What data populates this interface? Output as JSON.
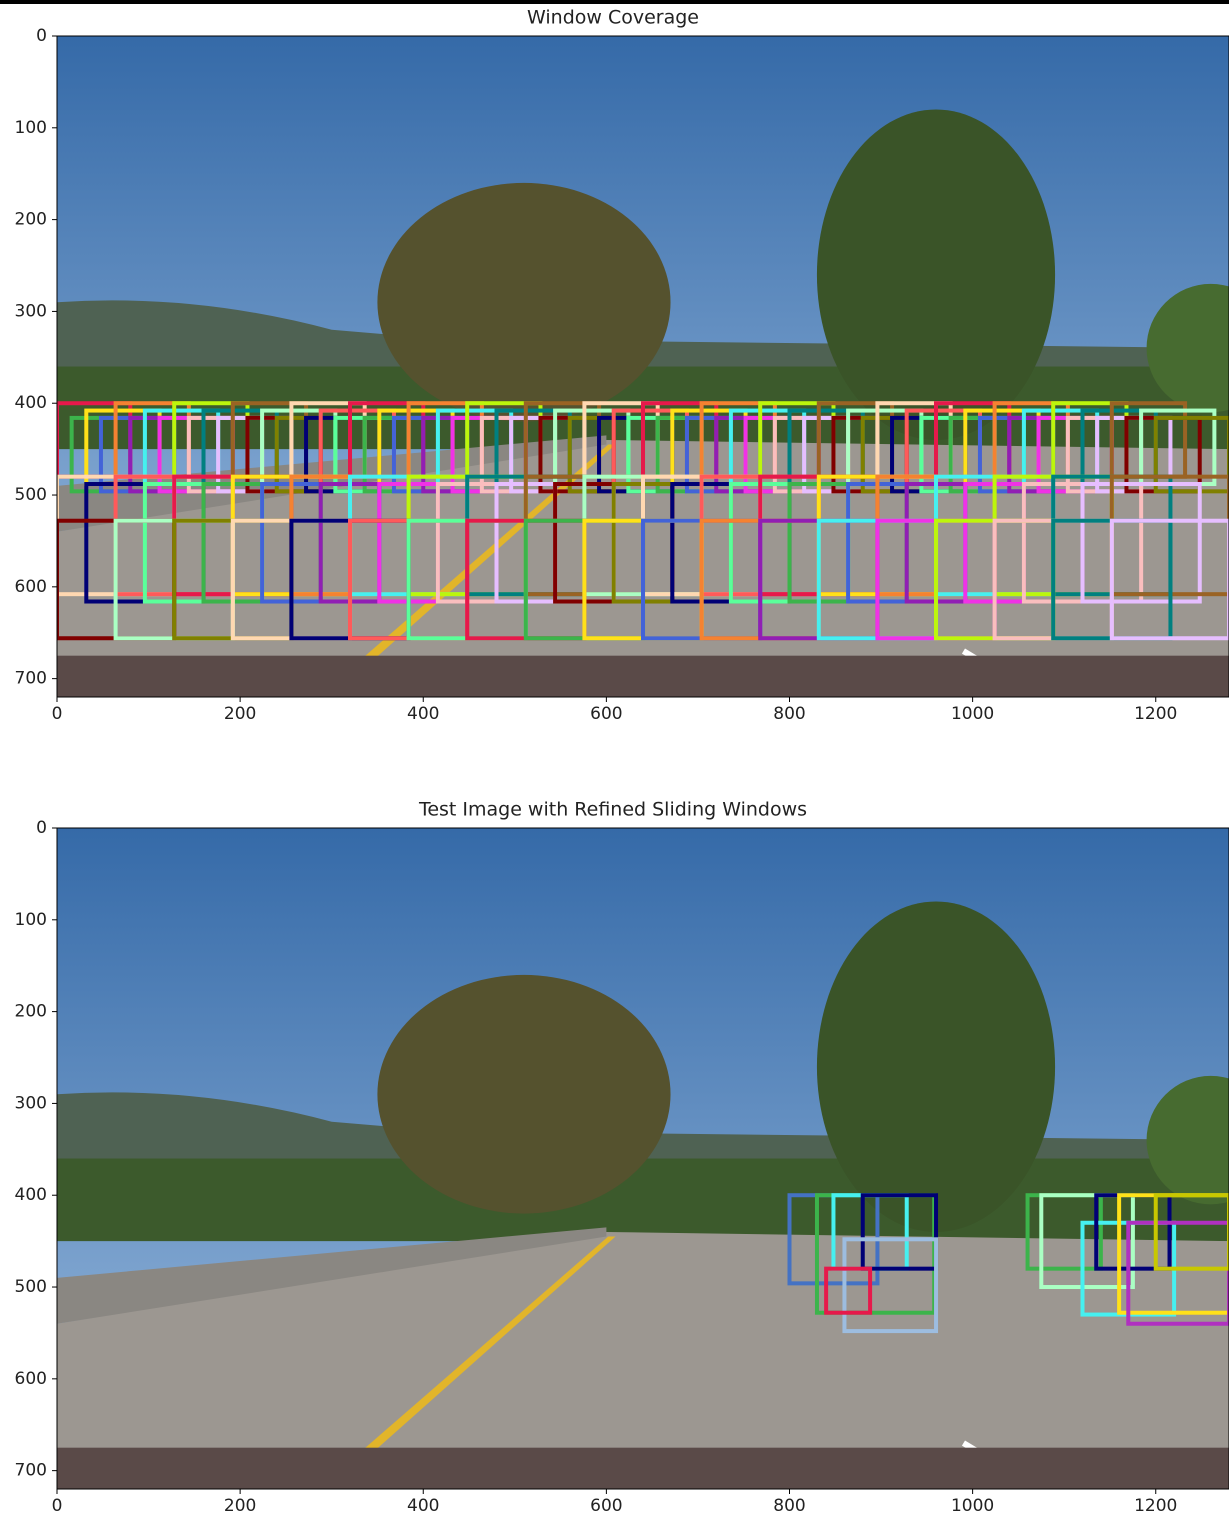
{
  "chart_data": [
    {
      "type": "image",
      "title": "Window Coverage",
      "xlim": [
        0,
        1280
      ],
      "ylim": [
        720,
        0
      ],
      "xticks": [
        0,
        200,
        400,
        600,
        800,
        1000,
        1200
      ],
      "yticks": [
        0,
        100,
        200,
        300,
        400,
        500,
        600,
        700
      ]
    },
    {
      "type": "image",
      "title": "Test Image with Refined Sliding Windows",
      "xlim": [
        0,
        1280
      ],
      "ylim": [
        720,
        0
      ],
      "xticks": [
        0,
        200,
        400,
        600,
        800,
        1000,
        1200
      ],
      "yticks": [
        0,
        100,
        200,
        300,
        400,
        500,
        600,
        700
      ]
    }
  ]
}
